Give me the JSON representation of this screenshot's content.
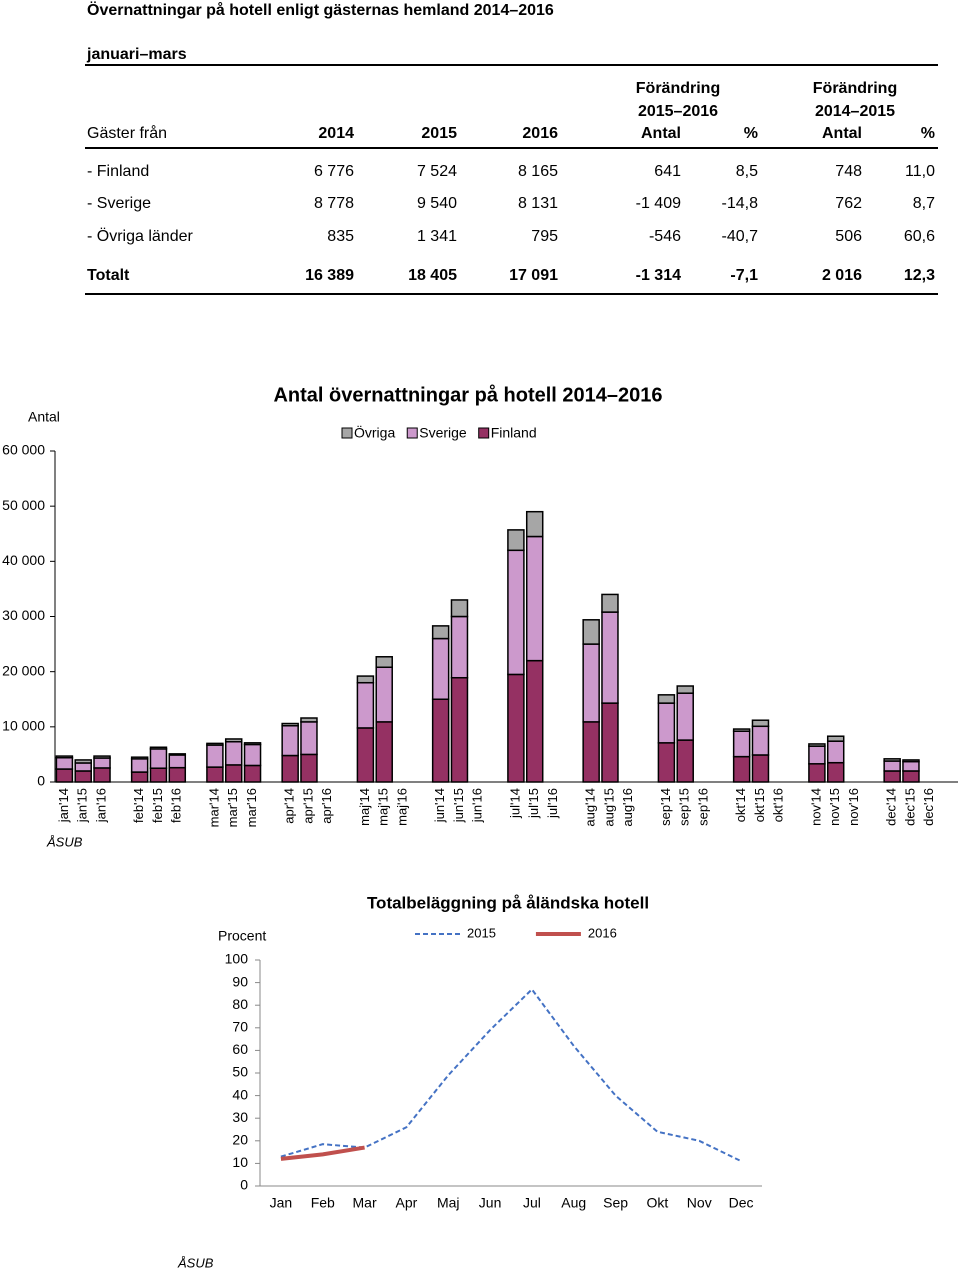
{
  "title": "Övernattningar på hotell enligt gästernas hemland 2014–2016",
  "subtitle": "januari–mars",
  "table": {
    "header_top": [
      "Förändring",
      "Förändring"
    ],
    "header_mid": [
      "2015–2016",
      "2014–2015"
    ],
    "columns": [
      "Gäster från",
      "2014",
      "2015",
      "2016",
      "Antal",
      "%",
      "Antal",
      "%"
    ],
    "rows": [
      [
        "- Finland",
        "6 776",
        "7 524",
        "8 165",
        "641",
        "8,5",
        "748",
        "11,0"
      ],
      [
        "- Sverige",
        "8 778",
        "9 540",
        "8 131",
        "-1 409",
        "-14,8",
        "762",
        "8,7"
      ],
      [
        "- Övriga länder",
        "835",
        "1 341",
        "795",
        "-546",
        "-40,7",
        "506",
        "60,6"
      ],
      [
        "Totalt",
        "16 389",
        "18 405",
        "17 091",
        "-1 314",
        "-7,1",
        "2 016",
        "12,3"
      ]
    ]
  },
  "chart_data": [
    {
      "type": "stacked_bar",
      "title": "Antal övernattningar på hotell 2014–2016",
      "ylabel": "Antal",
      "source": "ÅSUB",
      "categories": [
        "jan'14",
        "jan'15",
        "jan'16",
        "feb'14",
        "feb'15",
        "feb'16",
        "mar'14",
        "mar'15",
        "mar'16",
        "apr'14",
        "apr'15",
        "apr'16",
        "maj'14",
        "maj'15",
        "maj'16",
        "jun'14",
        "jun'15",
        "jun'16",
        "jul'14",
        "jul'15",
        "jul'16",
        "aug'14",
        "aug'15",
        "aug'16",
        "sep'14",
        "sep'15",
        "sep'16",
        "okt'14",
        "okt'15",
        "okt'16",
        "nov'14",
        "nov'15",
        "nov'16",
        "dec'14",
        "dec'15",
        "dec'16"
      ],
      "series": [
        {
          "name": "Övriga",
          "color": "#a6a6a6",
          "values": [
            300,
            550,
            350,
            300,
            300,
            200,
            300,
            500,
            300,
            400,
            700,
            null,
            1200,
            1900,
            null,
            2300,
            3000,
            null,
            3700,
            4500,
            null,
            4400,
            3200,
            null,
            1500,
            1300,
            null,
            400,
            1100,
            null,
            400,
            900,
            null,
            400,
            300,
            null
          ]
        },
        {
          "name": "Sverige",
          "color": "#cc99cc",
          "values": [
            2050,
            1450,
            1800,
            2400,
            3500,
            2300,
            4000,
            4200,
            3800,
            5400,
            5900,
            null,
            8200,
            9900,
            null,
            11000,
            11100,
            null,
            22500,
            22500,
            null,
            14100,
            16500,
            null,
            7200,
            8500,
            null,
            4600,
            5200,
            null,
            3200,
            3900,
            null,
            1800,
            1700,
            null
          ]
        },
        {
          "name": "Finland",
          "color": "#953163",
          "values": [
            2350,
            2000,
            2550,
            1800,
            2500,
            2600,
            2700,
            3100,
            3000,
            4800,
            5000,
            null,
            9800,
            10900,
            null,
            15000,
            18900,
            null,
            19500,
            22000,
            null,
            10900,
            14300,
            null,
            7100,
            7600,
            null,
            4600,
            4900,
            null,
            3300,
            3500,
            null,
            2000,
            2000,
            null
          ]
        }
      ],
      "ylim": [
        0,
        60000
      ],
      "yticks": [
        0,
        {
          "value": 10000,
          "label": "10 000"
        },
        {
          "value": 20000,
          "label": "20 000"
        },
        {
          "value": 30000,
          "label": "30 000"
        },
        {
          "value": 40000,
          "label": "40 000"
        },
        {
          "value": 50000,
          "label": "50 000"
        },
        {
          "value": 60000,
          "label": "60 000"
        }
      ]
    },
    {
      "type": "line",
      "title": "Totalbeläggning på åländska hotell",
      "ylabel": "Procent",
      "source": "ÅSUB",
      "categories": [
        "Jan",
        "Feb",
        "Mar",
        "Apr",
        "Maj",
        "Jun",
        "Jul",
        "Aug",
        "Sep",
        "Okt",
        "Nov",
        "Dec"
      ],
      "series": [
        {
          "name": "2015",
          "color": "#4472c4",
          "dashed": true,
          "values": [
            13,
            18.5,
            17,
            26,
            49,
            69,
            87,
            62,
            40,
            24,
            20,
            11
          ]
        },
        {
          "name": "2016",
          "color": "#c0504d",
          "dashed": false,
          "values": [
            12,
            14,
            17,
            null,
            null,
            null,
            null,
            null,
            null,
            null,
            null,
            null
          ]
        }
      ],
      "ylim": [
        0,
        100
      ],
      "yticks": [
        0,
        10,
        20,
        30,
        40,
        50,
        60,
        70,
        80,
        90,
        100
      ]
    }
  ]
}
